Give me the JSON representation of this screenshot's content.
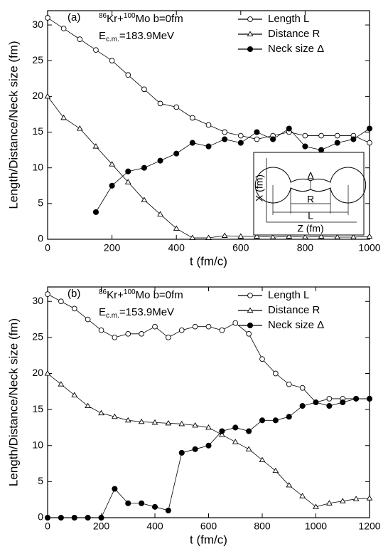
{
  "chart_data": [
    {
      "type": "line",
      "panel": "(a)",
      "reaction": [
        "86",
        "Kr+",
        "100",
        "Mo  b=0fm"
      ],
      "energy": [
        "E",
        "c.m.",
        "=183.9MeV"
      ],
      "xlabel": "t (fm/c)",
      "ylabel": "Length/Distance/Neck size (fm)",
      "x": [
        0,
        50,
        100,
        150,
        200,
        250,
        300,
        350,
        400,
        450,
        500,
        550,
        600,
        650,
        700,
        750,
        800,
        850,
        900,
        950,
        1000
      ],
      "series": [
        {
          "name": "Length  L",
          "marker": "open-circle",
          "color": "#000000",
          "values": [
            31,
            29.5,
            28,
            26.5,
            25,
            23,
            21,
            19,
            18.5,
            17,
            16,
            15,
            14.5,
            14,
            14.5,
            15,
            14.5,
            14.5,
            14.5,
            14.5,
            13.5
          ]
        },
        {
          "name": "Distance R",
          "marker": "open-triangle",
          "color": "#000000",
          "values": [
            20,
            17,
            15.5,
            13,
            10.5,
            8,
            5.5,
            3.5,
            1.5,
            0.2,
            0.2,
            0.5,
            0.4,
            0.4,
            0.3,
            0.4,
            0.3,
            0.4,
            0.3,
            0.3,
            0.4
          ]
        },
        {
          "name": "Neck size Δ",
          "marker": "filled-circle",
          "color": "#000000",
          "values": [
            null,
            null,
            null,
            3.8,
            7.5,
            9.5,
            10,
            11,
            12,
            13.5,
            13,
            14,
            13.5,
            15,
            14,
            15.5,
            13,
            12.5,
            13.5,
            14,
            15.5
          ]
        }
      ],
      "xlim": [
        0,
        1000
      ],
      "xticks": [
        0,
        200,
        400,
        600,
        800,
        1000
      ],
      "ylim": [
        0,
        32
      ],
      "yticks": [
        0,
        5,
        10,
        15,
        20,
        25,
        30
      ],
      "legend": "upper right",
      "inset": {
        "xlabel": "Z (fm)",
        "ylabel": "X (fm)",
        "labels": [
          "Δ",
          "R",
          "L"
        ]
      }
    },
    {
      "type": "line",
      "panel": "(b)",
      "reaction": [
        "86",
        "Kr+",
        "100",
        "Mo  b=0fm"
      ],
      "energy": [
        "E",
        "c.m.",
        "=153.9MeV"
      ],
      "xlabel": "t (fm/c)",
      "ylabel": "Length/Distance/Neck size (fm)",
      "x": [
        0,
        50,
        100,
        150,
        200,
        250,
        300,
        350,
        400,
        450,
        500,
        550,
        600,
        650,
        700,
        750,
        800,
        850,
        900,
        950,
        1000,
        1050,
        1100,
        1150,
        1200
      ],
      "series": [
        {
          "name": "Length  L",
          "marker": "open-circle",
          "color": "#000000",
          "values": [
            31,
            30,
            29,
            27.5,
            26,
            25,
            25.5,
            25.5,
            26.5,
            25,
            26,
            26.5,
            26.5,
            26,
            27,
            25.5,
            22,
            20,
            18.5,
            18,
            16,
            16.5,
            16.5,
            16.5,
            16.5
          ]
        },
        {
          "name": "Distance R",
          "marker": "open-triangle",
          "color": "#000000",
          "values": [
            20,
            18.5,
            17,
            15.5,
            14.5,
            14,
            13.5,
            13.3,
            13.2,
            13.1,
            13,
            12.8,
            12.5,
            11.5,
            10.5,
            9.5,
            8,
            6.5,
            4.5,
            3,
            1.5,
            2,
            2.3,
            2.6,
            2.7
          ]
        },
        {
          "name": "Neck size Δ",
          "marker": "filled-circle",
          "color": "#000000",
          "values": [
            0,
            0,
            0,
            0,
            0,
            4,
            2,
            2,
            1.5,
            1,
            9,
            9.5,
            10,
            12,
            12.5,
            12,
            13.5,
            13.5,
            14,
            15.5,
            16,
            15.5,
            16,
            16.5,
            16.5
          ]
        }
      ],
      "xlim": [
        0,
        1200
      ],
      "xticks": [
        0,
        200,
        400,
        600,
        800,
        1000,
        1200
      ],
      "ylim": [
        0,
        32
      ],
      "yticks": [
        0,
        5,
        10,
        15,
        20,
        25,
        30
      ],
      "legend": "upper right"
    }
  ]
}
